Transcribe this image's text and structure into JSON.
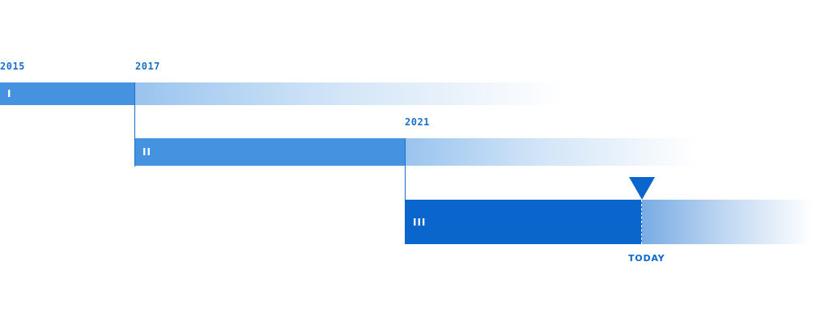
{
  "timeline": {
    "years": [
      "2015",
      "2017",
      "2021"
    ],
    "phases": [
      {
        "numeral": "I",
        "start": "2015",
        "end": "2017"
      },
      {
        "numeral": "II",
        "start": "2017",
        "end": "2021"
      },
      {
        "numeral": "III",
        "start": "2021",
        "end": "TODAY"
      }
    ],
    "today_label": "TODAY",
    "colors": {
      "bar": "#4593e0",
      "bar_current": "#0a66cc",
      "text": "#1b6fc9"
    }
  }
}
